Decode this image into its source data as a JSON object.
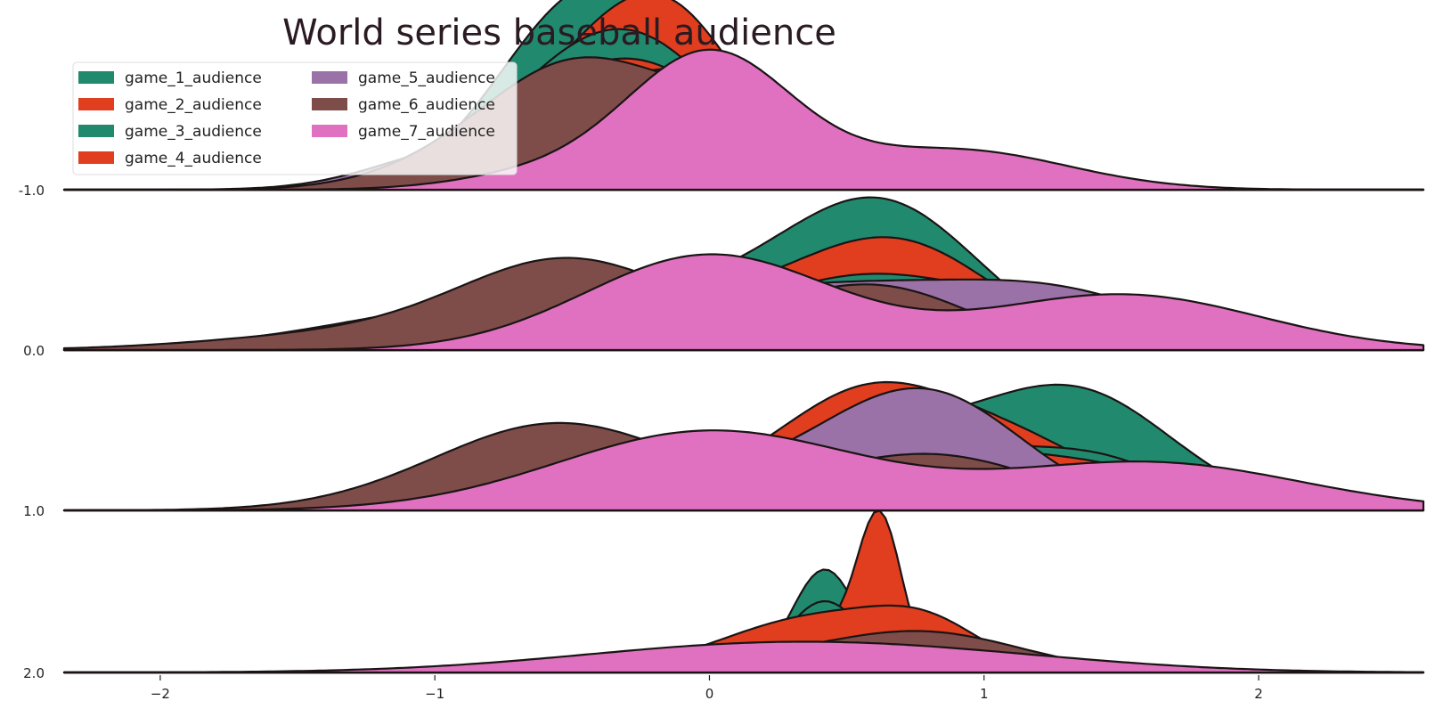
{
  "chart_data": {
    "type": "area",
    "title": "World series baseball audience",
    "xlabel": "",
    "ylabel": "",
    "xlim": [
      -2.35,
      2.6
    ],
    "x_ticks": [
      "−2",
      "−1",
      "0",
      "1",
      "2"
    ],
    "x_tick_values": [
      -2,
      -1,
      0,
      1,
      2
    ],
    "row_labels": [
      "-1.0",
      "0.0",
      "1.0",
      "2.0"
    ],
    "grid": false,
    "legend": "top-left",
    "series": [
      {
        "name": "game_1_audience",
        "color": "#218a6e"
      },
      {
        "name": "game_2_audience",
        "color": "#e03e1e"
      },
      {
        "name": "game_3_audience",
        "color": "#218a6e"
      },
      {
        "name": "game_4_audience",
        "color": "#e03e1e"
      },
      {
        "name": "game_5_audience",
        "color": "#9a72a8"
      },
      {
        "name": "game_6_audience",
        "color": "#7e4d4a"
      },
      {
        "name": "game_7_audience",
        "color": "#e071c0"
      }
    ],
    "rows": [
      {
        "label": "-1.0",
        "densities": [
          {
            "series": 0,
            "peaks": [
              [
                -0.5,
                0.3,
                1.0
              ],
              [
                -0.1,
                0.3,
                0.6
              ]
            ]
          },
          {
            "series": 1,
            "peaks": [
              [
                -0.35,
                0.35,
                0.85
              ],
              [
                -0.1,
                0.25,
                0.5
              ]
            ]
          },
          {
            "series": 2,
            "peaks": [
              [
                -0.45,
                0.35,
                0.72
              ],
              [
                -0.15,
                0.3,
                0.4
              ]
            ]
          },
          {
            "series": 3,
            "peaks": [
              [
                -0.45,
                0.35,
                0.6
              ],
              [
                -0.1,
                0.3,
                0.35
              ]
            ]
          },
          {
            "series": 4,
            "peaks": [
              [
                -0.15,
                0.3,
                0.75
              ],
              [
                -0.9,
                0.3,
                0.25
              ]
            ]
          },
          {
            "series": 5,
            "peaks": [
              [
                -0.5,
                0.3,
                0.65
              ],
              [
                0.1,
                0.35,
                0.5
              ],
              [
                -0.9,
                0.3,
                0.15
              ]
            ]
          },
          {
            "series": 6,
            "peaks": [
              [
                0.0,
                0.3,
                0.85
              ],
              [
                0.9,
                0.4,
                0.25
              ],
              [
                -0.6,
                0.3,
                0.1
              ]
            ]
          }
        ]
      },
      {
        "label": "0.0",
        "densities": [
          {
            "series": 0,
            "peaks": [
              [
                0.65,
                0.35,
                0.8
              ],
              [
                0.0,
                0.5,
                0.35
              ]
            ]
          },
          {
            "series": 1,
            "peaks": [
              [
                0.7,
                0.35,
                0.55
              ],
              [
                0.0,
                0.6,
                0.3
              ]
            ]
          },
          {
            "series": 2,
            "peaks": [
              [
                0.6,
                0.4,
                0.45
              ],
              [
                1.3,
                0.3,
                0.2
              ],
              [
                -0.5,
                0.5,
                0.2
              ]
            ]
          },
          {
            "series": 3,
            "peaks": [
              [
                0.6,
                0.4,
                0.35
              ],
              [
                1.3,
                0.3,
                0.25
              ],
              [
                -0.5,
                0.5,
                0.2
              ]
            ]
          },
          {
            "series": 4,
            "peaks": [
              [
                -0.7,
                0.6,
                0.3
              ],
              [
                0.5,
                0.5,
                0.35
              ],
              [
                1.3,
                0.4,
                0.3
              ]
            ]
          },
          {
            "series": 5,
            "peaks": [
              [
                -0.5,
                0.4,
                0.55
              ],
              [
                0.6,
                0.35,
                0.4
              ],
              [
                -1.3,
                0.5,
                0.1
              ]
            ]
          },
          {
            "series": 6,
            "peaks": [
              [
                0.0,
                0.45,
                0.6
              ],
              [
                1.5,
                0.5,
                0.35
              ]
            ]
          }
        ]
      },
      {
        "label": "1.0",
        "densities": [
          {
            "series": 0,
            "peaks": [
              [
                1.35,
                0.35,
                0.7
              ],
              [
                0.6,
                0.4,
                0.45
              ]
            ]
          },
          {
            "series": 1,
            "peaks": [
              [
                0.6,
                0.35,
                0.75
              ],
              [
                1.2,
                0.3,
                0.3
              ],
              [
                -0.5,
                0.5,
                0.15
              ]
            ]
          },
          {
            "series": 2,
            "peaks": [
              [
                0.6,
                0.4,
                0.5
              ],
              [
                1.4,
                0.3,
                0.3
              ]
            ]
          },
          {
            "series": 3,
            "peaks": [
              [
                0.6,
                0.4,
                0.45
              ],
              [
                1.4,
                0.35,
                0.25
              ]
            ]
          },
          {
            "series": 4,
            "peaks": [
              [
                0.8,
                0.35,
                0.7
              ],
              [
                0.2,
                0.4,
                0.2
              ]
            ]
          },
          {
            "series": 5,
            "peaks": [
              [
                -0.55,
                0.45,
                0.55
              ],
              [
                0.8,
                0.4,
                0.35
              ]
            ]
          },
          {
            "series": 6,
            "peaks": [
              [
                0.0,
                0.55,
                0.5
              ],
              [
                1.6,
                0.55,
                0.3
              ]
            ]
          }
        ]
      },
      {
        "label": "2.0",
        "densities": [
          {
            "series": 0,
            "peaks": [
              [
                0.42,
                0.12,
                0.65
              ]
            ]
          },
          {
            "series": 1,
            "peaks": [
              [
                0.62,
                0.08,
                0.9
              ],
              [
                0.35,
                0.2,
                0.3
              ]
            ]
          },
          {
            "series": 2,
            "peaks": [
              [
                0.42,
                0.14,
                0.45
              ]
            ]
          },
          {
            "series": 3,
            "peaks": [
              [
                0.4,
                0.35,
                0.35
              ],
              [
                0.8,
                0.2,
                0.2
              ]
            ]
          },
          {
            "series": 4,
            "peaks": [
              [
                0.2,
                0.6,
                0.12
              ],
              [
                0.7,
                0.3,
                0.1
              ]
            ]
          },
          {
            "series": 5,
            "peaks": [
              [
                0.8,
                0.35,
                0.22
              ],
              [
                0.2,
                0.5,
                0.08
              ]
            ]
          },
          {
            "series": 6,
            "peaks": [
              [
                0.2,
                0.7,
                0.17
              ],
              [
                1.0,
                0.6,
                0.05
              ]
            ]
          }
        ]
      }
    ]
  }
}
